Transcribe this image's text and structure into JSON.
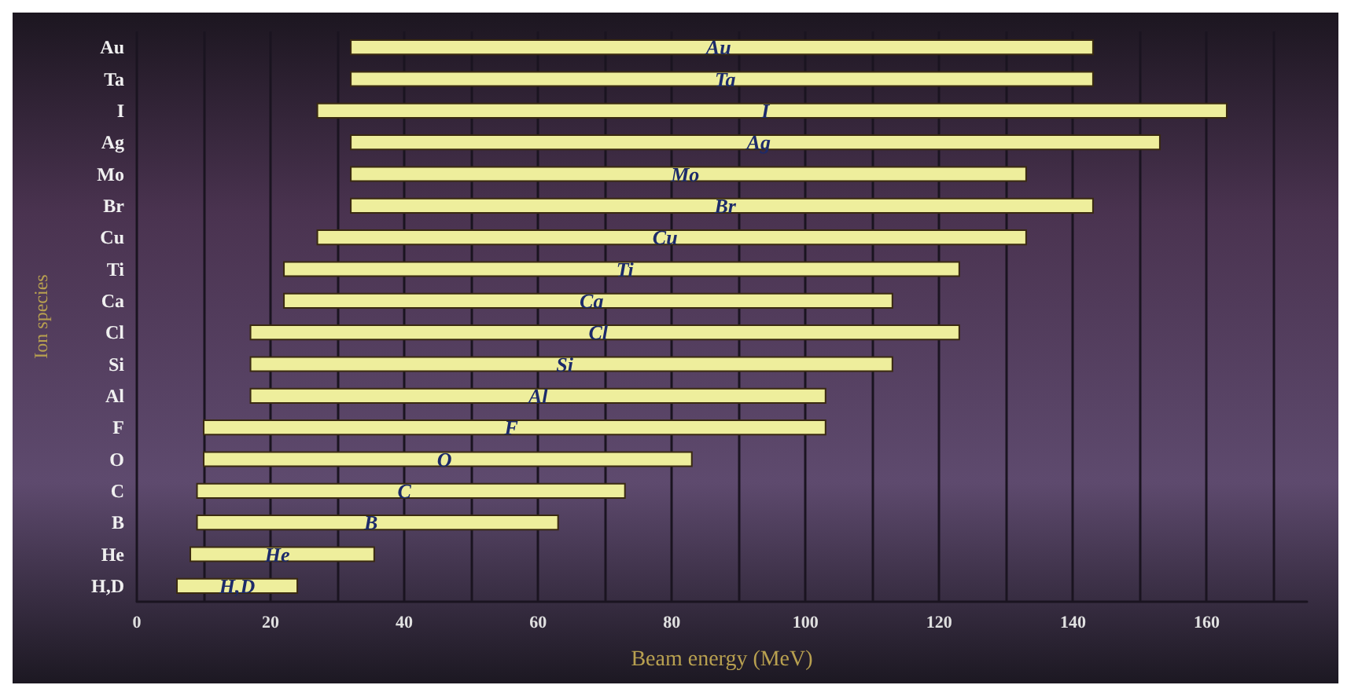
{
  "chart_data": {
    "type": "bar",
    "orientation": "horizontal",
    "xlabel": "Beam energy (MeV)",
    "ylabel": "Ion species",
    "categories": [
      "Au",
      "Ta",
      "I",
      "Ag",
      "Mo",
      "Br",
      "Cu",
      "Ti",
      "Ca",
      "Cl",
      "Si",
      "Al",
      "F",
      "O",
      "C",
      "B",
      "He",
      "H,D"
    ],
    "base": [
      32,
      32,
      27,
      32,
      32,
      32,
      27,
      22,
      22,
      17,
      17,
      17,
      10,
      10,
      9,
      9,
      8,
      6
    ],
    "values": [
      111,
      111,
      136,
      121,
      101,
      111,
      106,
      101,
      91,
      106,
      96,
      86,
      93,
      73,
      64,
      54,
      27.5,
      18
    ],
    "color": "#eeee9c",
    "xlim": [
      0,
      175
    ],
    "xticks": [
      0,
      {
        "value": 10,
        "label": null
      },
      20,
      {
        "value": 30,
        "label": null
      },
      40,
      {
        "value": 50,
        "label": null
      },
      60,
      {
        "value": 70,
        "label": null
      },
      80,
      {
        "value": 90,
        "label": null
      },
      100,
      {
        "value": 110,
        "label": null
      },
      120,
      {
        "value": 130,
        "label": null
      },
      140,
      {
        "value": 150,
        "label": null
      },
      160,
      {
        "value": 170,
        "label": null
      }
    ],
    "grid": "x",
    "annotations": [
      {
        "text": "Au",
        "x": 87,
        "y": "Au"
      },
      {
        "text": "Ta",
        "x": 88,
        "y": "Ta"
      },
      {
        "text": "I",
        "x": 94,
        "y": "I"
      },
      {
        "text": "Ag",
        "x": 93,
        "y": "Ag"
      },
      {
        "text": "Mo",
        "x": 82,
        "y": "Mo"
      },
      {
        "text": "Br",
        "x": 88,
        "y": "Br"
      },
      {
        "text": "Cu",
        "x": 79,
        "y": "Cu"
      },
      {
        "text": "Ti",
        "x": 73,
        "y": "Ti"
      },
      {
        "text": "Ca",
        "x": 68,
        "y": "Ca"
      },
      {
        "text": "Cl",
        "x": 69,
        "y": "Cl"
      },
      {
        "text": "Si",
        "x": 64,
        "y": "Si"
      },
      {
        "text": "Al",
        "x": 60,
        "y": "Al"
      },
      {
        "text": "F",
        "x": 56,
        "y": "F"
      },
      {
        "text": "O",
        "x": 46,
        "y": "O"
      },
      {
        "text": "C",
        "x": 40,
        "y": "C"
      },
      {
        "text": "B",
        "x": 35,
        "y": "B"
      },
      {
        "text": "He",
        "x": 21,
        "y": "He"
      },
      {
        "text": "H,D",
        "x": 15,
        "y": "H,D"
      }
    ]
  }
}
